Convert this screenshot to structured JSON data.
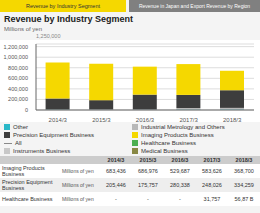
{
  "chart_data": {
    "type": "bar",
    "stacked": true,
    "title": "Revenue by Industry Segment",
    "subtitle": "Millions of yen",
    "annotations": [
      "Revenue by Industry Segment",
      "Revenue in Japan and Export Revenue by Region",
      "1,250,000"
    ],
    "categories": [
      "2014/3",
      "2015/3",
      "2016/3",
      "2017/3",
      "2018/3"
    ],
    "series": [
      {
        "name": "Other",
        "color": "#2ab8c8",
        "type": "bar",
        "values": [
          3000,
          3000,
          3000,
          8000,
          10000
        ]
      },
      {
        "name": "Industrial Metrology and Others",
        "color": "#b8b8b8",
        "type": "bar",
        "values": [
          8000,
          8000,
          8000,
          30000,
          30000
        ]
      },
      {
        "name": "Precision Equipment Business",
        "color": "#3d3d3d",
        "type": "bar",
        "values": [
          205446,
          175757,
          280338,
          248026,
          334259
        ]
      },
      {
        "name": "Imaging Products Business",
        "color": "#f5d800",
        "type": "bar",
        "values": [
          683436,
          686976,
          529687,
          583626,
          368700
        ]
      },
      {
        "name": "All",
        "color": "#888888",
        "type": "line",
        "values": [
          null,
          null,
          null,
          null,
          null
        ]
      },
      {
        "name": "Healthcare Business",
        "color": "#4caf50",
        "type": "bar",
        "values": [
          null,
          null,
          null,
          null,
          null
        ]
      },
      {
        "name": "Instruments Business",
        "color": "#c8c8c8",
        "type": "bar",
        "values": [
          null,
          null,
          null,
          null,
          null
        ]
      },
      {
        "name": "Medical Business",
        "color": "#888844",
        "type": "bar",
        "values": [
          null,
          null,
          null,
          null,
          null
        ]
      }
    ],
    "ylim": [
      0,
      1250000
    ],
    "yticks": [
      0,
      {
        "value": 200000,
        "label": "200,000"
      },
      {
        "value": 400000,
        "label": "400,000"
      },
      {
        "value": 600000,
        "label": "600,000"
      },
      {
        "value": 800000,
        "label": "800,000"
      },
      {
        "value": 1000000,
        "label": "1,000,000"
      },
      {
        "value": 1200000,
        "label": "1,200,000"
      }
    ],
    "grid": true,
    "table": {
      "headers": [
        "2014/3",
        "2015/3",
        "2016/3",
        "2017/3",
        "2018/3"
      ],
      "rows": [
        {
          "name": "Imaging Products\nBusiness",
          "unit": "Millions of yen",
          "values": [
            "683,436",
            "686,976",
            "529,687",
            "583,626",
            "368,700"
          ]
        },
        {
          "name": "Precision Equipment\nBusiness",
          "unit": "Millions of yen",
          "values": [
            "205,446",
            "175,757",
            "280,338",
            "248,026",
            "334,259"
          ]
        },
        {
          "name": "Healthcare Business",
          "unit": "Millions of yen",
          "values": [
            "-",
            "-",
            "-",
            "31,757",
            "56,87 B"
          ]
        }
      ]
    }
  }
}
